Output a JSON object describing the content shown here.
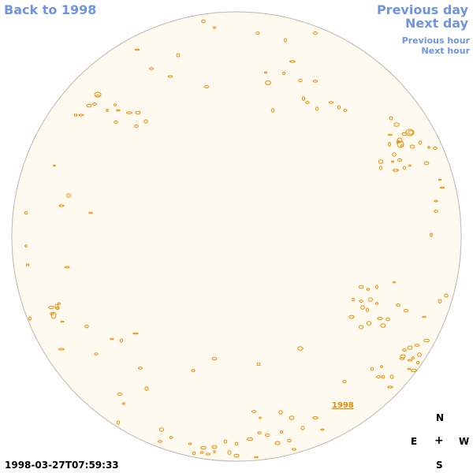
{
  "nav": {
    "back_year": "Back to 1998",
    "previous_day": "Previous day",
    "next_day": "Next day",
    "previous_hour": "Previous hour",
    "next_hour": "Next hour"
  },
  "disc": {
    "fill_color": "#fffaf0",
    "stroke_color": "#bdb7ad",
    "contour_color": "#e88a00",
    "link_label": "1998"
  },
  "compass": {
    "north": "N",
    "east": "E",
    "center": "+",
    "west": "W",
    "south": "S"
  },
  "timestamp": "1998-03-27T07:59:33"
}
